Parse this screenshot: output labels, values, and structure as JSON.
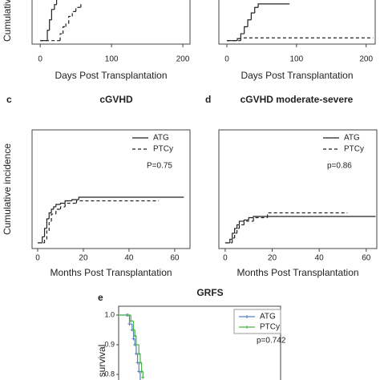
{
  "chart_data": [
    {
      "type": "line",
      "step": true,
      "ylabel": "Cumulative incidence",
      "xlabel": "Days Post Transplantation",
      "xlim": [
        -11.4,
        210
      ],
      "ylim": [
        -0.05,
        1.05
      ],
      "xticks": [
        0,
        100,
        200
      ],
      "series": [
        {
          "color": "#222222",
          "line_style": "solid",
          "x": [
            0,
            10,
            13,
            16,
            20,
            23
          ],
          "values": [
            0,
            0.15,
            0.3,
            0.45,
            0.52,
            0.7
          ]
        },
        {
          "color": "#222222",
          "line_style": "dashed",
          "x": [
            0,
            28,
            32,
            36,
            40,
            45,
            50,
            57
          ],
          "values": [
            0,
            0.1,
            0.2,
            0.25,
            0.35,
            0.42,
            0.48,
            0.53
          ]
        }
      ]
    },
    {
      "type": "line",
      "step": true,
      "xlabel": "Days Post Transplantation",
      "xlim": [
        -11.5,
        213
      ],
      "ylim": [
        -0.05,
        1.05
      ],
      "xticks": [
        0,
        100,
        200
      ],
      "series": [
        {
          "color": "#222222",
          "line_style": "solid",
          "x": [
            0,
            15,
            20,
            25,
            30,
            35,
            40,
            45,
            90
          ],
          "values": [
            0,
            0.03,
            0.1,
            0.2,
            0.3,
            0.4,
            0.48,
            0.53,
            0.53
          ]
        },
        {
          "color": "#222222",
          "line_style": "dashed",
          "x": [
            0,
            20,
            210
          ],
          "values": [
            0,
            0.04,
            0.04
          ]
        }
      ]
    },
    {
      "type": "line",
      "step": true,
      "panel": "c",
      "title": "cGVHD",
      "ylabel": "Cumulative incidence",
      "xlabel": "Months Post Transplantation",
      "annotation": "P=0.75",
      "xlim": [
        -2.46,
        66.7
      ],
      "ylim": [
        -0.047,
        0.94
      ],
      "xticks": [
        0,
        20,
        40,
        60
      ],
      "series": [
        {
          "name": "ATG",
          "color": "#222222",
          "line_style": "solid",
          "x": [
            0,
            2,
            3,
            4,
            5,
            6,
            7,
            8,
            10,
            12,
            15,
            18,
            64
          ],
          "values": [
            0,
            0.05,
            0.12,
            0.2,
            0.25,
            0.28,
            0.3,
            0.32,
            0.33,
            0.35,
            0.36,
            0.38,
            0.38
          ]
        },
        {
          "name": "PTCy",
          "color": "#222222",
          "line_style": "dashed",
          "x": [
            0,
            3,
            4,
            5,
            6,
            8,
            10,
            12,
            17,
            53
          ],
          "values": [
            0,
            0.03,
            0.1,
            0.18,
            0.24,
            0.28,
            0.3,
            0.33,
            0.35,
            0.35
          ]
        }
      ]
    },
    {
      "type": "line",
      "step": true,
      "panel": "d",
      "title": "cGVHD moderate-severe",
      "xlabel": "Months Post Transplantation",
      "annotation": "p=0.86",
      "xlim": [
        -2.7,
        64.5
      ],
      "ylim": [
        -0.047,
        0.94
      ],
      "xticks": [
        0,
        20,
        40,
        60
      ],
      "series": [
        {
          "name": "ATG",
          "color": "#222222",
          "line_style": "solid",
          "x": [
            0,
            2,
            3,
            4,
            5,
            6,
            8,
            10,
            12,
            64
          ],
          "values": [
            0,
            0.03,
            0.08,
            0.12,
            0.15,
            0.18,
            0.19,
            0.21,
            0.22,
            0.22
          ]
        },
        {
          "name": "PTCy",
          "color": "#222222",
          "line_style": "dashed",
          "x": [
            0,
            3,
            4,
            5,
            6,
            8,
            12,
            18,
            52
          ],
          "values": [
            0,
            0.04,
            0.08,
            0.12,
            0.15,
            0.18,
            0.21,
            0.25,
            0.25
          ]
        }
      ]
    },
    {
      "type": "line",
      "step": true,
      "panel": "e",
      "title": "GRFS",
      "ylabel": "survival",
      "annotation": "p=0.742",
      "xlim": [
        0,
        60
      ],
      "ylim": [
        0.765,
        1.0297
      ],
      "yticks": [
        {
          "value": 1.0,
          "label": "1.0"
        },
        {
          "value": 0.9,
          "label": "0.9"
        },
        {
          "value": 0.8,
          "label": "0.8"
        }
      ],
      "series": [
        {
          "name": "ATG",
          "color": "#5a7fc0",
          "line_style": "solid",
          "marker": "+",
          "x": [
            0,
            3,
            4,
            5,
            5.5,
            6,
            6.5,
            7,
            7.5,
            8
          ],
          "values": [
            1,
            1,
            0.97,
            0.95,
            0.92,
            0.9,
            0.87,
            0.84,
            0.81,
            0.78
          ]
        },
        {
          "name": "PTCy",
          "color": "#4ab04a",
          "line_style": "solid",
          "marker": "+",
          "x": [
            0,
            3.5,
            4.5,
            5.5,
            6,
            6.5,
            7.5,
            8,
            8.5,
            9
          ],
          "values": [
            1,
            1,
            0.98,
            0.95,
            0.93,
            0.9,
            0.87,
            0.84,
            0.81,
            0.79
          ]
        }
      ]
    }
  ]
}
